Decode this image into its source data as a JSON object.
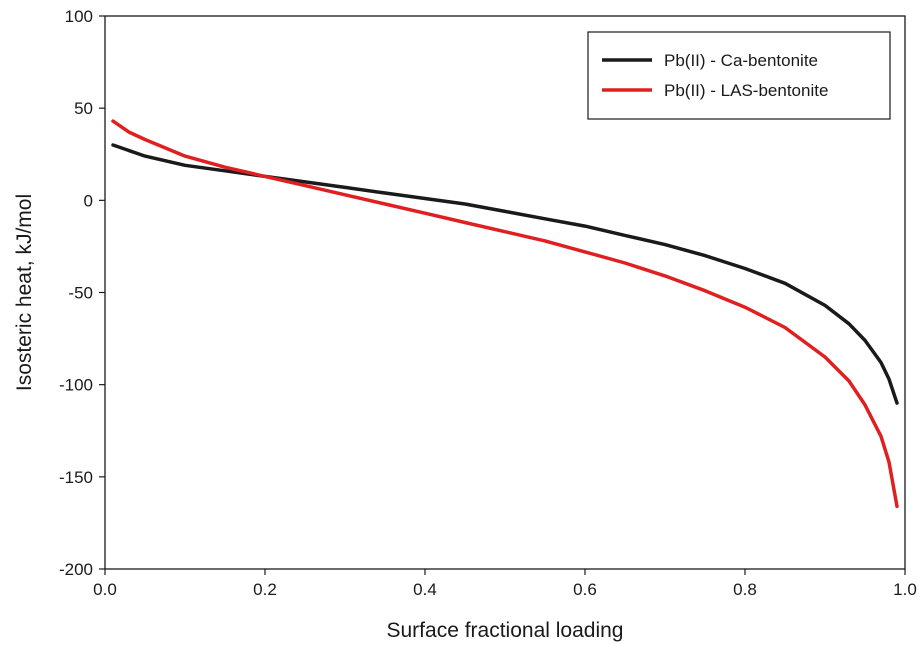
{
  "chart_data": {
    "type": "line",
    "title": "",
    "xlabel": "Surface fractional loading",
    "ylabel": "Isosteric heat, kJ/mol",
    "xlim": [
      0.0,
      1.0
    ],
    "ylim": [
      -200,
      100
    ],
    "xticks": [
      0.0,
      0.2,
      0.4,
      0.6,
      0.8,
      1.0
    ],
    "xtick_labels": [
      "0.0",
      "0.2",
      "0.4",
      "0.6",
      "0.8",
      "1.0"
    ],
    "yticks": [
      -200,
      -150,
      -100,
      -50,
      0,
      50,
      100
    ],
    "ytick_labels": [
      "-200",
      "-150",
      "-100",
      "-50",
      "0",
      "50",
      "100"
    ],
    "grid": false,
    "legend_position": "top-right",
    "series": [
      {
        "name": "Pb(II) - Ca-bentonite",
        "color": "#1a1a1a",
        "x": [
          0.01,
          0.05,
          0.1,
          0.15,
          0.2,
          0.25,
          0.3,
          0.35,
          0.4,
          0.45,
          0.5,
          0.55,
          0.6,
          0.65,
          0.7,
          0.75,
          0.8,
          0.85,
          0.9,
          0.93,
          0.95,
          0.97,
          0.98,
          0.99
        ],
        "y": [
          30,
          24,
          19,
          16,
          13,
          10,
          7,
          4,
          1,
          -2,
          -6,
          -10,
          -14,
          -19,
          -24,
          -30,
          -37,
          -45,
          -57,
          -67,
          -76,
          -88,
          -97,
          -110
        ]
      },
      {
        "name": "Pb(II) - LAS-bentonite",
        "color": "#e02020",
        "x": [
          0.01,
          0.03,
          0.05,
          0.1,
          0.15,
          0.2,
          0.25,
          0.3,
          0.35,
          0.4,
          0.45,
          0.5,
          0.55,
          0.6,
          0.65,
          0.7,
          0.75,
          0.8,
          0.85,
          0.9,
          0.93,
          0.95,
          0.97,
          0.98,
          0.99
        ],
        "y": [
          43,
          37,
          33,
          24,
          18,
          13,
          8,
          3,
          -2,
          -7,
          -12,
          -17,
          -22,
          -28,
          -34,
          -41,
          -49,
          -58,
          -69,
          -85,
          -98,
          -111,
          -128,
          -142,
          -166
        ]
      }
    ]
  }
}
